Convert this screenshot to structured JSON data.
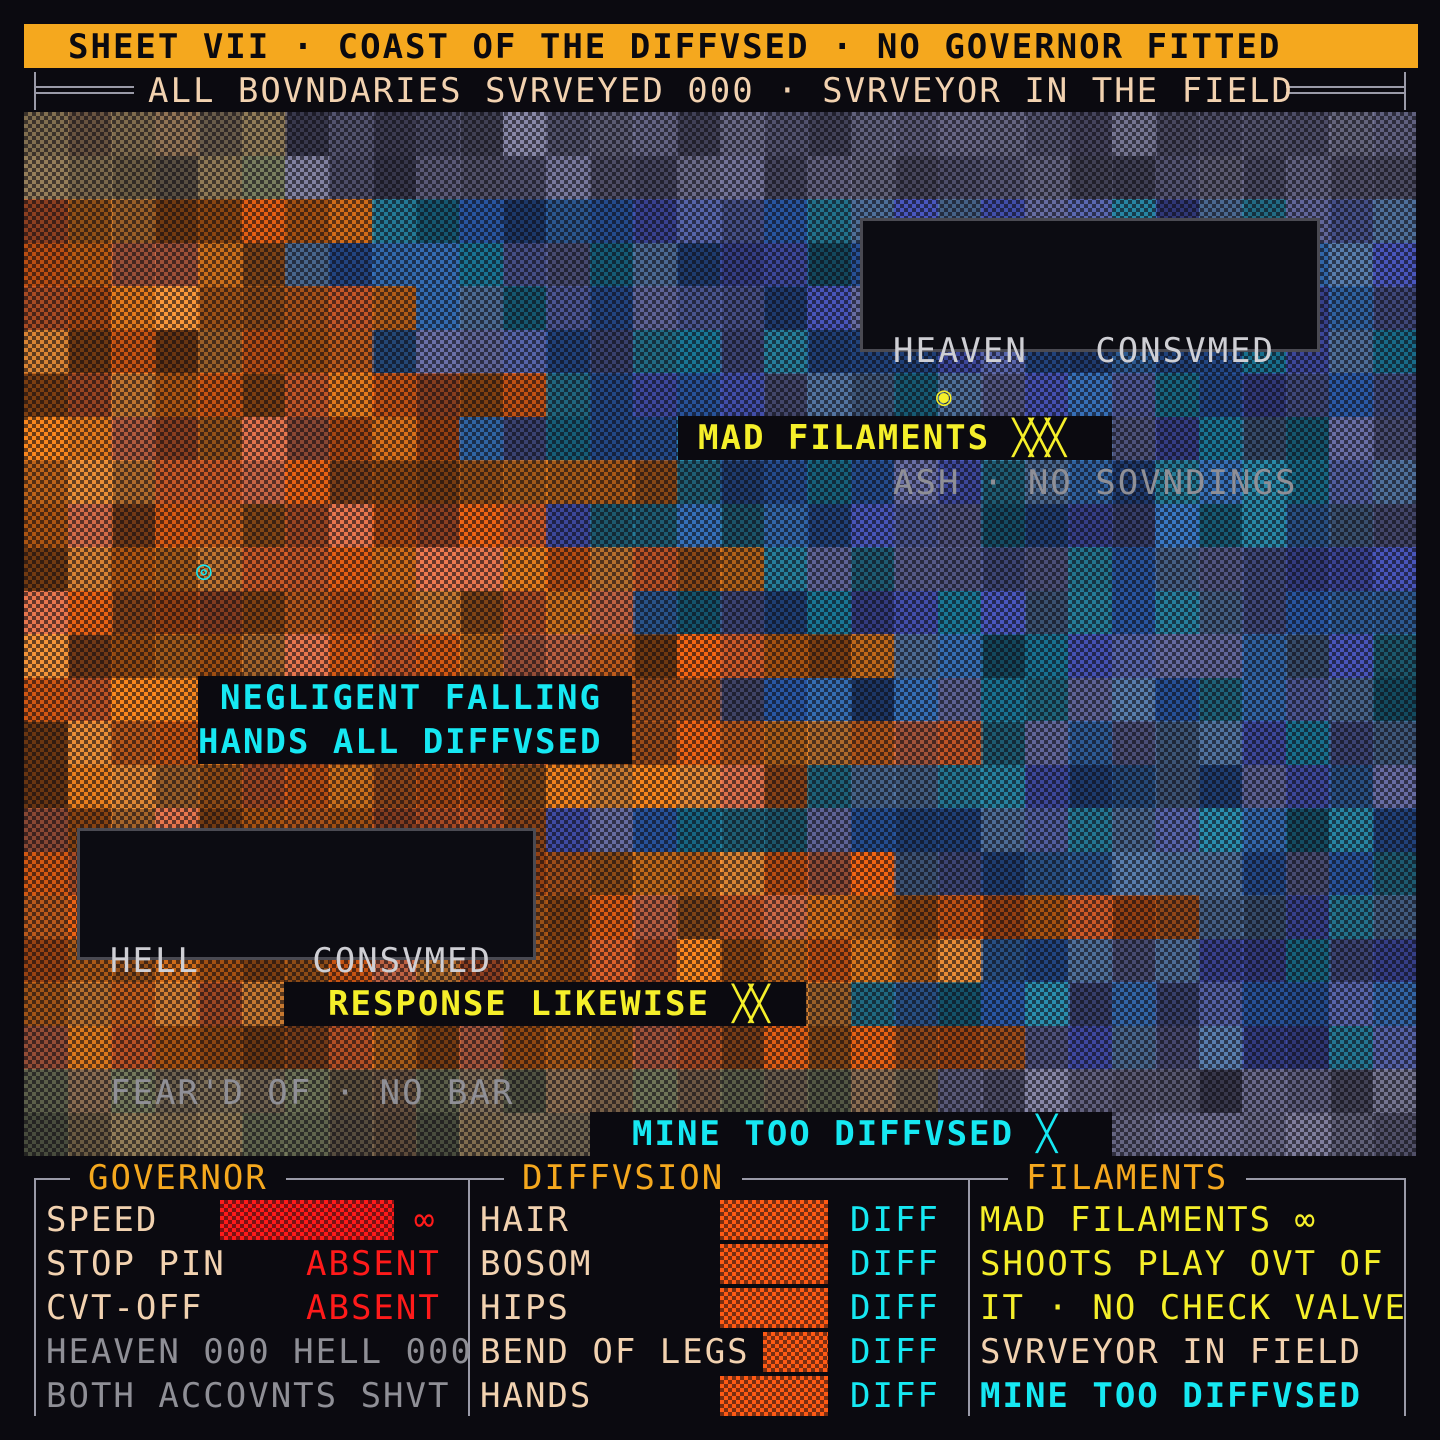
{
  "header": {
    "title": "SHEET VII · COAST OF THE DIFFVSED · NO GOVERNOR FITTED",
    "subtitle": "ALL BOVNDARIES SVRVEYED 000 · SVRVEYOR IN THE FIELD"
  },
  "colors": {
    "accent_orange": "#f5a81e",
    "banner_yellow": "#f5ef2a",
    "banner_cyan": "#16e8f2",
    "alert_red": "#ff1a1a",
    "swatch_orange": "#ff5a14",
    "text_cream": "#f2d2b0",
    "text_dim": "#8f8f96",
    "panel_border": "#9a9aa8"
  },
  "field": {
    "cards": {
      "heaven": {
        "line1": "HEAVEN   CONSVMED",
        "line2": "ASH · NO SOVNDINGS"
      },
      "hell": {
        "line1": "HELL     CONSVMED",
        "line2": "FEAR'D OF · NO BAR"
      }
    },
    "banners": {
      "mad_filaments": "MAD FILAMENTS",
      "mad_filaments_mark": "╳╳╳",
      "negligent_1": "NEGLIGENT FALLING",
      "negligent_2": "HANDS ALL DIFFVSED",
      "response": "RESPONSE LIKEWISE",
      "response_mark": "╳╳",
      "mine_too": "MINE TOO DIFFVSED",
      "mine_too_mark": "╳"
    },
    "markers": {
      "yellow_marker": "◉",
      "cyan_marker": "◎"
    }
  },
  "panels": {
    "governor": {
      "title": "GOVERNOR",
      "speed_label": "SPEED",
      "speed_value": "∞",
      "stop_pin_label": "STOP PIN",
      "stop_pin_value": "ABSENT",
      "cutoff_label": "CVT-OFF",
      "cutoff_value": "ABSENT",
      "note1": "HEAVEN 000 HELL 000",
      "note2": "BOTH ACCOVNTS SHVT"
    },
    "diffusion": {
      "title": "DIFFVSION",
      "rows": [
        {
          "label": "HAIR",
          "status": "DIFF",
          "level": 1.0
        },
        {
          "label": "BOSOM",
          "status": "DIFF",
          "level": 1.0
        },
        {
          "label": "HIPS",
          "status": "DIFF",
          "level": 1.0
        },
        {
          "label": "BEND OF LEGS",
          "status": "DIFF",
          "level": 0.6
        },
        {
          "label": "HANDS",
          "status": "DIFF",
          "level": 1.0
        }
      ]
    },
    "filaments": {
      "title": "FILAMENTS",
      "line1": "MAD FILAMENTS ∞",
      "line2": "SHOOTS PLAY OVT OF",
      "line3": "IT · NO CHECK VALVE",
      "line4": "SVRVEYOR IN FIELD",
      "line5": "MINE TOO DIFFVSED"
    }
  }
}
